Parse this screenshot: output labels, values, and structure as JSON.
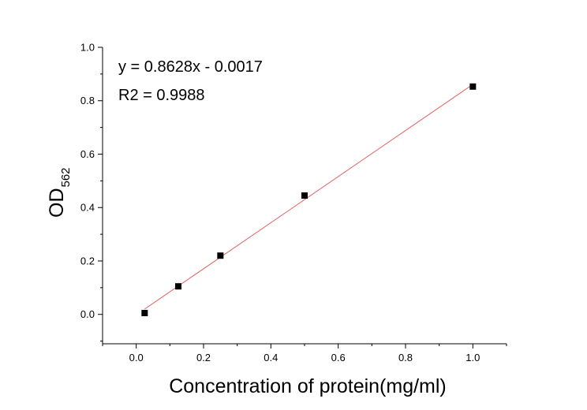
{
  "chart_data": {
    "type": "scatter",
    "title": "",
    "xlabel": "Concentration of  protein(mg/ml)",
    "ylabel": {
      "main": "OD",
      "subscript": "562"
    },
    "xlim": [
      -0.1,
      1.1
    ],
    "ylim": [
      -0.11,
      1.0
    ],
    "x_ticks": [
      0.0,
      0.2,
      0.4,
      0.6,
      0.8,
      1.0
    ],
    "x_tick_labels": [
      "0.0",
      "0.2",
      "0.4",
      "0.6",
      "0.8",
      "1.0"
    ],
    "y_ticks": [
      0.0,
      0.2,
      0.4,
      0.6,
      0.8,
      1.0
    ],
    "y_tick_labels": [
      "0.0",
      "0.2",
      "0.4",
      "0.6",
      "0.8",
      "1.0"
    ],
    "grid": false,
    "legend": "none",
    "series": [
      {
        "x": [
          0.025,
          0.125,
          0.25,
          0.5,
          1.0
        ],
        "y": [
          0.005,
          0.105,
          0.22,
          0.445,
          0.853
        ],
        "marker": "square",
        "color": "#000000"
      }
    ],
    "fit_line": {
      "slope": 0.8628,
      "intercept": -0.0017,
      "x_range": [
        0.025,
        1.0
      ],
      "color": "#e06060"
    },
    "annotations": [
      "y = 0.8628x - 0.0017",
      "R2 = 0.9988"
    ]
  }
}
